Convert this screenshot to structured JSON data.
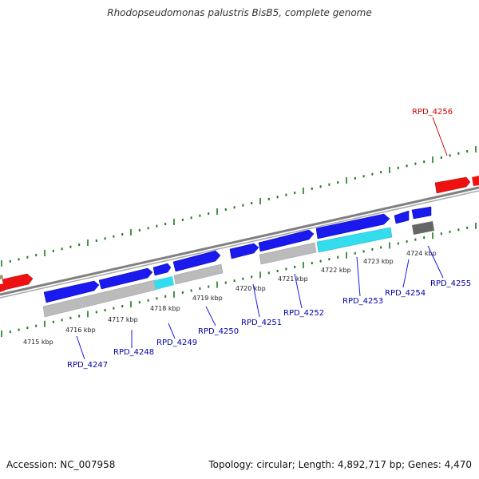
{
  "title": "Rhodopseudomonas palustris BisB5, complete genome",
  "footer": {
    "accession": "Accession: NC_007958",
    "summary": "Topology: circular; Length: 4,892,717 bp; Genes: 4,470"
  },
  "colors": {
    "backbone": "#808080",
    "tick": "#1a7a1a",
    "cds_forward": "#1a1aee",
    "cds_highlight": "#33ddee",
    "cds_other": "#ee1111",
    "cds_reverse": "#bbbbbb",
    "label_blue": "#0000aa",
    "label_red": "#cc0000"
  },
  "scale_labels": [
    "4715 kbp",
    "4716 kbp",
    "4717 kbp",
    "4718 kbp",
    "4719 kbp",
    "4720 kbp",
    "4721 kbp",
    "4722 kbp",
    "4723 kbp",
    "4724 kbp"
  ],
  "genes": [
    "RPD_4247",
    "RPD_4248",
    "RPD_4249",
    "RPD_4250",
    "RPD_4251",
    "RPD_4252",
    "RPD_4253",
    "RPD_4254",
    "RPD_4255",
    "RPD_4256"
  ]
}
